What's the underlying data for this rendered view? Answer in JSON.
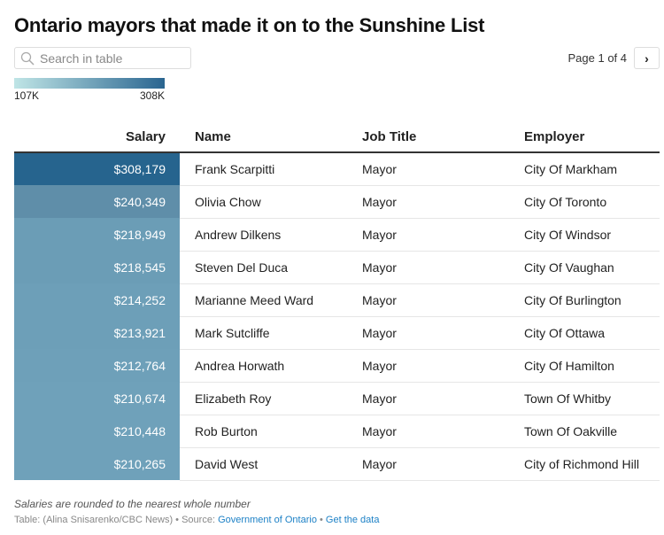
{
  "title": "Ontario mayors that made it on to the Sunshine List",
  "search": {
    "placeholder": "Search in table",
    "value": ""
  },
  "pagination": {
    "label": "Page 1 of 4",
    "next": "›"
  },
  "legend": {
    "min_label": "107K",
    "max_label": "308K",
    "min_color": "#bfe5e6",
    "max_color": "#2a6590"
  },
  "table": {
    "headers": [
      "Salary",
      "Name",
      "Job Title",
      "Employer"
    ],
    "rows": [
      {
        "salary": "$308,179",
        "name": "Frank Scarpitti",
        "job": "Mayor",
        "employer": "City Of Markham",
        "color": "#26648e"
      },
      {
        "salary": "$240,349",
        "name": "Olivia Chow",
        "job": "Mayor",
        "employer": "City Of Toronto",
        "color": "#5f8ea9"
      },
      {
        "salary": "$218,949",
        "name": "Andrew Dilkens",
        "job": "Mayor",
        "employer": "City Of Windsor",
        "color": "#6b9db6"
      },
      {
        "salary": "$218,545",
        "name": "Steven Del Duca",
        "job": "Mayor",
        "employer": "City Of Vaughan",
        "color": "#6b9db6"
      },
      {
        "salary": "$214,252",
        "name": "Marianne Meed Ward",
        "job": "Mayor",
        "employer": "City Of Burlington",
        "color": "#6d9fb8"
      },
      {
        "salary": "$213,921",
        "name": "Mark Sutcliffe",
        "job": "Mayor",
        "employer": "City Of Ottawa",
        "color": "#6d9fb8"
      },
      {
        "salary": "$212,764",
        "name": "Andrea Horwath",
        "job": "Mayor",
        "employer": "City Of Hamilton",
        "color": "#6ea0b9"
      },
      {
        "salary": "$210,674",
        "name": "Elizabeth Roy",
        "job": "Mayor",
        "employer": "Town Of Whitby",
        "color": "#6fa1ba"
      },
      {
        "salary": "$210,448",
        "name": "Rob Burton",
        "job": "Mayor",
        "employer": "Town Of Oakville",
        "color": "#6fa1ba"
      },
      {
        "salary": "$210,265",
        "name": "David West",
        "job": "Mayor",
        "employer": "City of Richmond Hill",
        "color": "#6fa1ba"
      }
    ]
  },
  "footer": {
    "note": "Salaries are rounded to the nearest whole number",
    "credit": "Table: (Alina Snisarenko/CBC News) • Source: ",
    "source_link": "Government of Ontario",
    "sep": " • ",
    "data_link": "Get the data"
  }
}
